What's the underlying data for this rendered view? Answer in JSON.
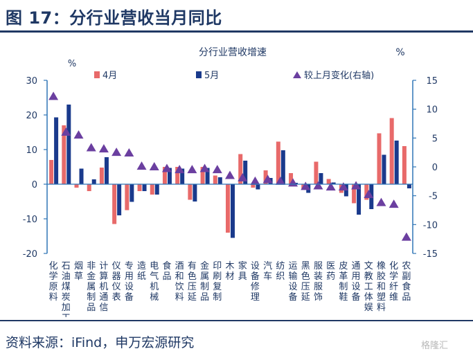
{
  "figure_title": "图 17：分行业营收当月同比",
  "source_text": "资料来源：iFind，申万宏源研究",
  "watermark": "格隆汇",
  "colors": {
    "series1": "#e86a6a",
    "series2": "#1a3a8c",
    "series3": "#6b3fa0",
    "axis": "#2e75b6",
    "text": "#1f3864"
  },
  "chart_data": {
    "type": "bar",
    "title": "分行业营收增速",
    "y_unit_left": "%",
    "y_unit_right": "%",
    "ylim": [
      -20,
      30
    ],
    "y_ticks": [
      30,
      20,
      10,
      0,
      -10,
      -20
    ],
    "y2lim": [
      -15,
      15
    ],
    "y2_ticks": [
      15,
      10,
      5,
      0,
      -5,
      -10,
      -15
    ],
    "legend_position": "top",
    "categories": [
      "化学原料",
      "石油煤炭加工",
      "烟草",
      "非金属制品",
      "计算机通信",
      "仪器仪表",
      "专用设备",
      "造纸",
      "电气机械",
      "食品",
      "酒和饮料",
      "有色压延",
      "金属制品",
      "印刷复制",
      "木材",
      "家具",
      "设备修理",
      "汽车",
      "纺织",
      "运输设备",
      "黑色压延",
      "服装服饰",
      "医药",
      "皮革制鞋",
      "通用设备",
      "文教工体娱",
      "橡胶和塑料",
      "化学纤维",
      "农副食品"
    ],
    "series": [
      {
        "name": "4月",
        "kind": "bar",
        "axis": "left",
        "values": [
          7,
          17,
          -1,
          -2,
          4.8,
          -11.5,
          -7.5,
          -2,
          -3,
          5,
          5,
          -4.5,
          5,
          2.5,
          -14,
          8.7,
          -1,
          4,
          12.3,
          3.2,
          -1.5,
          6.5,
          1.5,
          -2.5,
          -5.5,
          -4.5,
          14.7,
          19.1,
          11
        ]
      },
      {
        "name": "5月",
        "kind": "bar",
        "axis": "left",
        "values": [
          19.3,
          23,
          4.5,
          1.4,
          7.8,
          -9,
          -5.1,
          -2,
          -3,
          4.7,
          4.5,
          -5,
          4.7,
          2,
          -15.5,
          6.8,
          -1.5,
          1.8,
          9.8,
          0.4,
          -2.5,
          3.2,
          0.5,
          -3.5,
          -8.8,
          -7.2,
          8.5,
          12.6,
          -1.2
        ]
      },
      {
        "name": "较上月变化(右轴)",
        "kind": "triangle",
        "axis": "right",
        "values": [
          12.2,
          6,
          5.5,
          3.3,
          3.1,
          2.5,
          2.4,
          0.1,
          0,
          -0.3,
          -0.5,
          -0.5,
          -0.3,
          -0.5,
          -1.5,
          -1.9,
          -2.5,
          -2.2,
          -2.5,
          -2.8,
          -3.4,
          -3.3,
          -3.5,
          -3.5,
          -3.3,
          -4.8,
          -6.2,
          -6.5,
          -12.2
        ]
      }
    ]
  }
}
